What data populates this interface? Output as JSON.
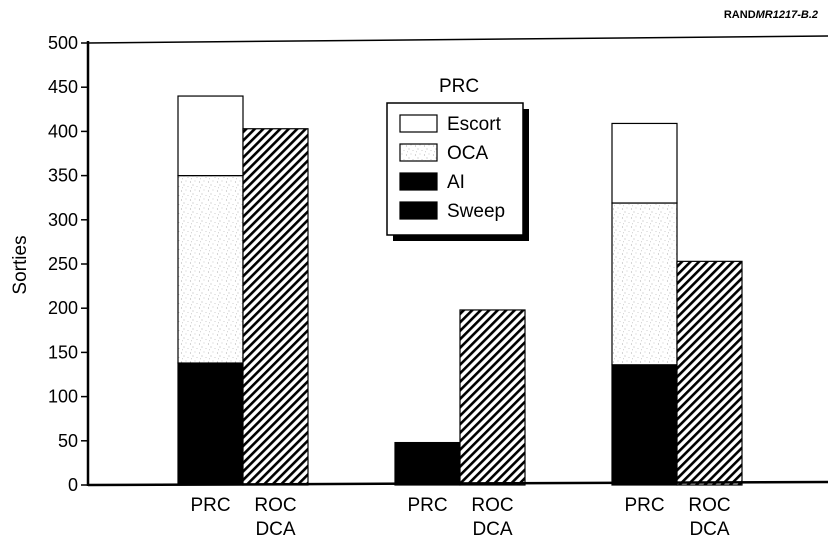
{
  "source": {
    "prefix": "RAND",
    "id": "MR1217-B.2"
  },
  "chart_data": {
    "type": "bar",
    "ylabel": "Sorties",
    "ylim": [
      0,
      500
    ],
    "yticks": [
      0,
      50,
      100,
      150,
      200,
      250,
      300,
      350,
      400,
      450,
      500
    ],
    "legend": {
      "title": "PRC",
      "placement": "top-center",
      "entries": [
        {
          "name": "Escort",
          "fill": "white"
        },
        {
          "name": "OCA",
          "fill": "stipple"
        },
        {
          "name": "AI",
          "fill": "black"
        },
        {
          "name": "Sweep",
          "fill": "black"
        }
      ]
    },
    "groups": [
      {
        "bars": [
          {
            "label": [
              "PRC"
            ],
            "type": "stacked",
            "segments": [
              {
                "name": "Sweep",
                "value": 138
              },
              {
                "name": "OCA",
                "value": 212
              },
              {
                "name": "Escort",
                "value": 90
              }
            ]
          },
          {
            "label": [
              "ROC",
              "DCA"
            ],
            "type": "hatched",
            "value": 403
          }
        ]
      },
      {
        "bars": [
          {
            "label": [
              "PRC"
            ],
            "type": "stacked",
            "segments": [
              {
                "name": "AI",
                "value": 48
              }
            ]
          },
          {
            "label": [
              "ROC",
              "DCA"
            ],
            "type": "hatched",
            "value": 198
          }
        ]
      },
      {
        "bars": [
          {
            "label": [
              "PRC"
            ],
            "type": "stacked",
            "segments": [
              {
                "name": "Sweep",
                "value": 136
              },
              {
                "name": "OCA",
                "value": 183
              },
              {
                "name": "Escort",
                "value": 90
              }
            ]
          },
          {
            "label": [
              "ROC",
              "DCA"
            ],
            "type": "hatched",
            "value": 253
          }
        ]
      }
    ]
  }
}
